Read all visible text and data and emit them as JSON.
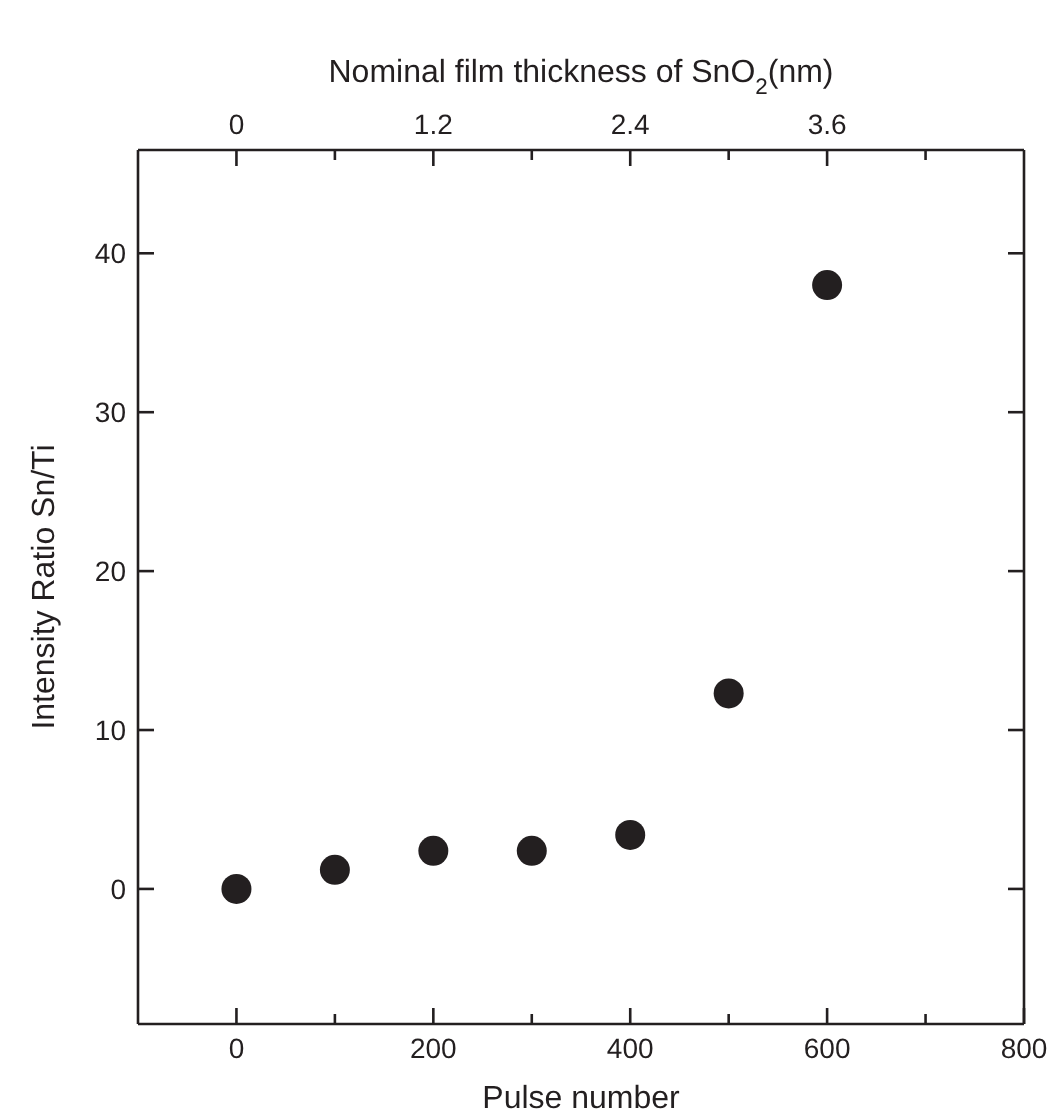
{
  "chart_data": {
    "type": "scatter",
    "xlabel": "Pulse number",
    "x2label": "Nominal film thickness of SnO$_{2}$(nm)",
    "ylabel": "Intensity Ratio Sn/Ti",
    "x": [
      0,
      100,
      200,
      300,
      400,
      500,
      600
    ],
    "series": [
      {
        "color": "#231f20",
        "values": [
          0,
          1.2,
          2.4,
          2.4,
          3.4,
          12.3,
          38
        ]
      }
    ],
    "marker": "circle",
    "xlim": [
      -100,
      800
    ],
    "xticks": [
      0,
      {
        "value": 100,
        "label": null
      },
      200,
      {
        "value": 300,
        "label": null
      },
      400,
      {
        "value": 500,
        "label": null
      },
      600,
      {
        "value": 700,
        "label": null
      },
      800
    ],
    "x2lim": [
      -0.6,
      4.8
    ],
    "x2ticks": [
      0,
      {
        "value": 0.6,
        "label": null
      },
      1.2,
      {
        "value": 1.8,
        "label": null
      },
      2.4,
      {
        "value": 3.0,
        "label": null
      },
      3.6,
      {
        "value": 4.2,
        "label": null
      }
    ],
    "ylim": [
      -8.5,
      46.5
    ],
    "yticks": [
      0,
      10,
      20,
      30,
      40
    ],
    "legend": false
  }
}
